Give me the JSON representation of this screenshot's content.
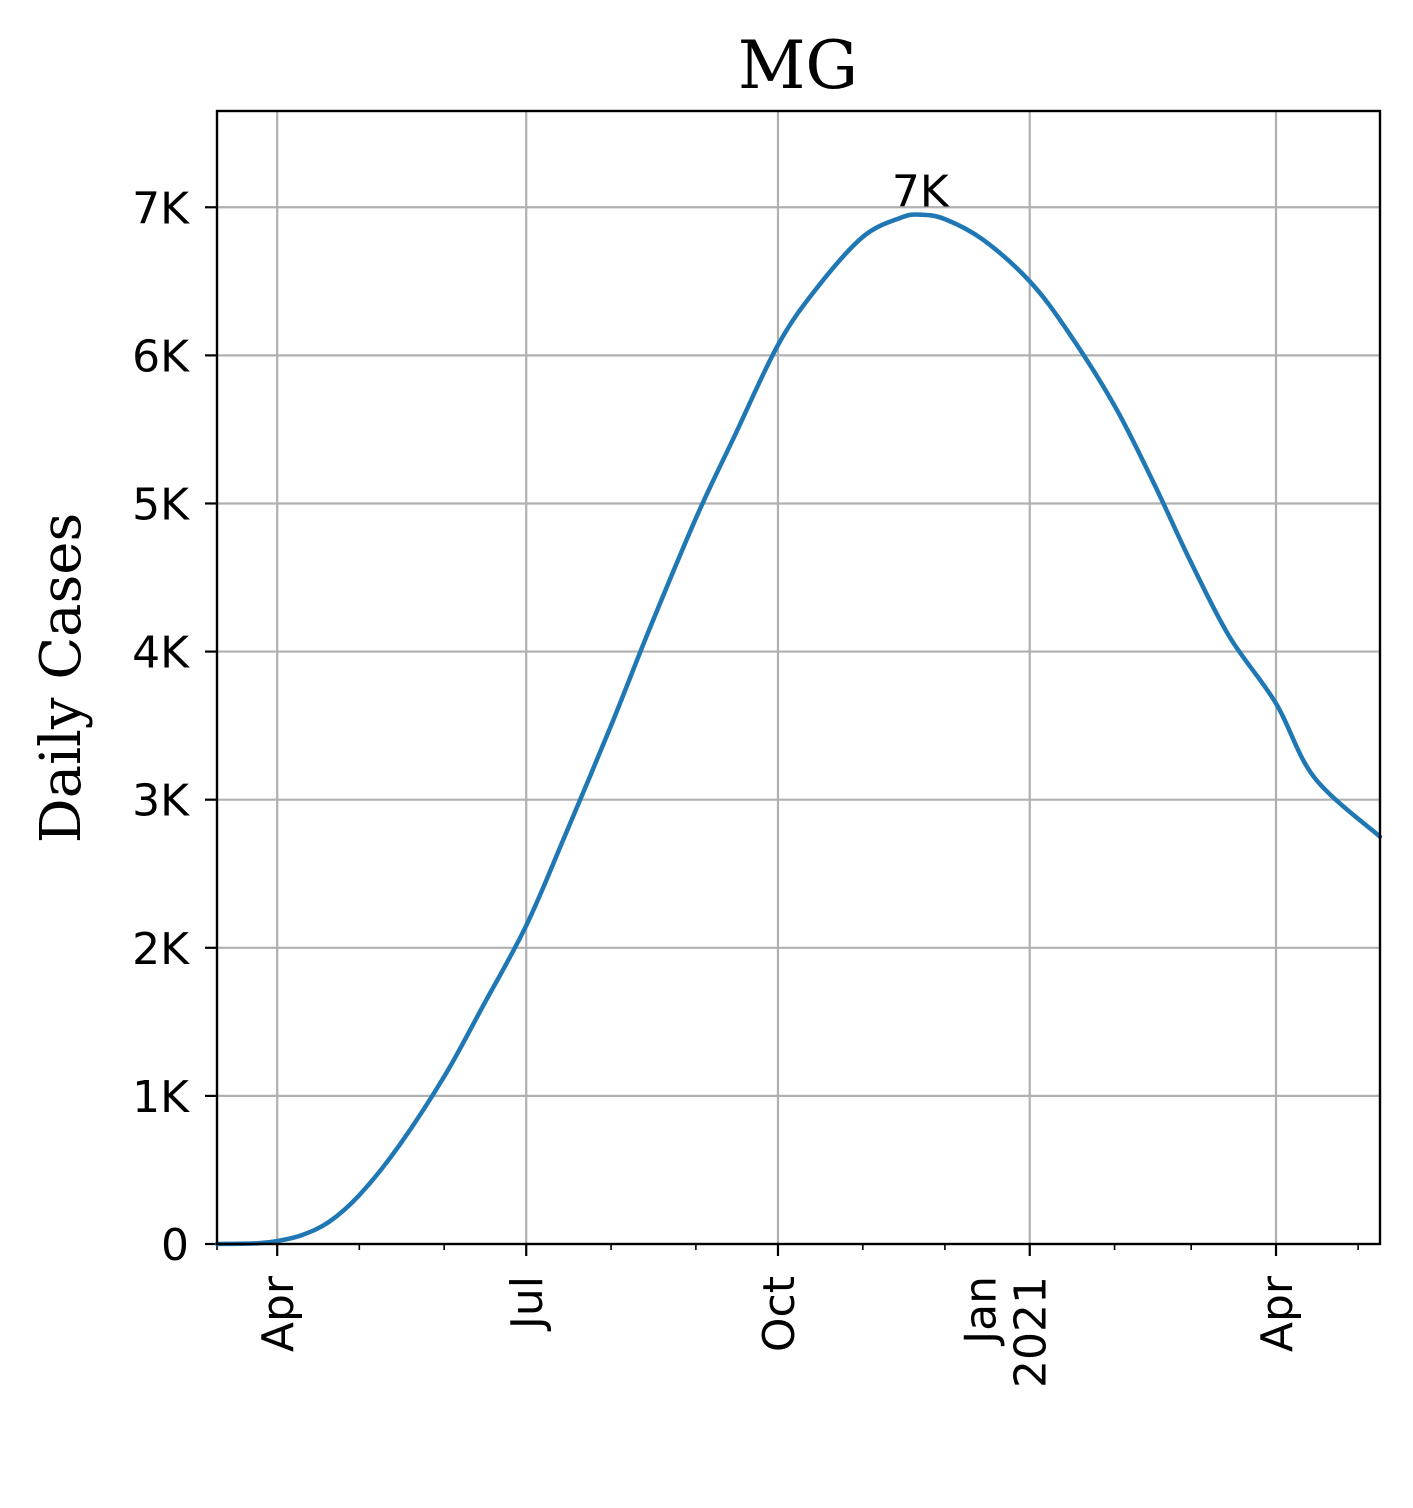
{
  "chart_data": {
    "type": "line",
    "title": "MG",
    "xlabel": "",
    "ylabel": "Daily Cases",
    "x_axis": {
      "type": "date",
      "range": [
        "2020-03-10",
        "2021-05-09"
      ],
      "ticks": [
        {
          "date": "2020-04-01",
          "label": "Apr"
        },
        {
          "date": "2020-07-01",
          "label": "Jul"
        },
        {
          "date": "2020-10-01",
          "label": "Oct"
        },
        {
          "date": "2021-01-01",
          "label": "Jan\n2021"
        },
        {
          "date": "2021-04-01",
          "label": "Apr"
        }
      ],
      "minor_ticks": [
        "2020-05-01",
        "2020-06-01",
        "2020-08-01",
        "2020-09-01",
        "2020-11-01",
        "2020-12-01",
        "2021-02-01",
        "2021-03-01",
        "2021-05-01"
      ]
    },
    "y_axis": {
      "range": [
        0,
        7650
      ],
      "ticks": [
        {
          "value": 0,
          "label": "0"
        },
        {
          "value": 1000,
          "label": "1K"
        },
        {
          "value": 2000,
          "label": "2K"
        },
        {
          "value": 3000,
          "label": "3K"
        },
        {
          "value": 4000,
          "label": "4K"
        },
        {
          "value": 5000,
          "label": "5K"
        },
        {
          "value": 6000,
          "label": "6K"
        },
        {
          "value": 7000,
          "label": "7K"
        }
      ]
    },
    "grid": true,
    "series": [
      {
        "color": "#1f77b4",
        "points": [
          {
            "x": "2020-03-10",
            "y": 0
          },
          {
            "x": "2020-03-25",
            "y": 5
          },
          {
            "x": "2020-04-01",
            "y": 20
          },
          {
            "x": "2020-04-10",
            "y": 60
          },
          {
            "x": "2020-04-20",
            "y": 150
          },
          {
            "x": "2020-05-01",
            "y": 330
          },
          {
            "x": "2020-05-15",
            "y": 650
          },
          {
            "x": "2020-06-01",
            "y": 1130
          },
          {
            "x": "2020-06-15",
            "y": 1600
          },
          {
            "x": "2020-07-01",
            "y": 2150
          },
          {
            "x": "2020-07-15",
            "y": 2750
          },
          {
            "x": "2020-08-01",
            "y": 3500
          },
          {
            "x": "2020-08-15",
            "y": 4150
          },
          {
            "x": "2020-09-01",
            "y": 4900
          },
          {
            "x": "2020-09-15",
            "y": 5450
          },
          {
            "x": "2020-10-01",
            "y": 6070
          },
          {
            "x": "2020-10-15",
            "y": 6450
          },
          {
            "x": "2020-11-01",
            "y": 6800
          },
          {
            "x": "2020-11-15",
            "y": 6930
          },
          {
            "x": "2020-11-22",
            "y": 6950
          },
          {
            "x": "2020-12-01",
            "y": 6920
          },
          {
            "x": "2020-12-15",
            "y": 6780
          },
          {
            "x": "2021-01-01",
            "y": 6500
          },
          {
            "x": "2021-01-15",
            "y": 6160
          },
          {
            "x": "2021-02-01",
            "y": 5660
          },
          {
            "x": "2021-02-15",
            "y": 5150
          },
          {
            "x": "2021-03-01",
            "y": 4600
          },
          {
            "x": "2021-03-15",
            "y": 4100
          },
          {
            "x": "2021-04-01",
            "y": 3650
          },
          {
            "x": "2021-04-15",
            "y": 3150
          },
          {
            "x": "2021-05-09",
            "y": 2750
          }
        ]
      }
    ],
    "annotations": [
      {
        "x": "2020-11-22",
        "y": 6950,
        "text": "7K"
      }
    ]
  }
}
